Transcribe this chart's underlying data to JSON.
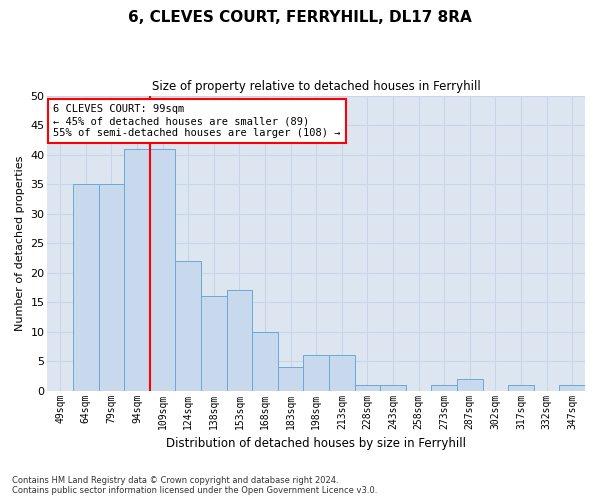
{
  "title": "6, CLEVES COURT, FERRYHILL, DL17 8RA",
  "subtitle": "Size of property relative to detached houses in Ferryhill",
  "xlabel": "Distribution of detached houses by size in Ferryhill",
  "ylabel": "Number of detached properties",
  "categories": [
    "49sqm",
    "64sqm",
    "79sqm",
    "94sqm",
    "109sqm",
    "124sqm",
    "138sqm",
    "153sqm",
    "168sqm",
    "183sqm",
    "198sqm",
    "213sqm",
    "228sqm",
    "243sqm",
    "258sqm",
    "273sqm",
    "287sqm",
    "302sqm",
    "317sqm",
    "332sqm",
    "347sqm"
  ],
  "values": [
    0,
    35,
    35,
    41,
    41,
    22,
    16,
    17,
    10,
    4,
    6,
    6,
    1,
    1,
    0,
    1,
    2,
    0,
    1,
    0,
    1
  ],
  "bar_color": "#c8d9ee",
  "bar_edge_color": "#6aaad4",
  "grid_color": "#c8d4e8",
  "background_color": "#dde6f0",
  "annotation_text": "6 CLEVES COURT: 99sqm\n← 45% of detached houses are smaller (89)\n55% of semi-detached houses are larger (108) →",
  "annotation_box_facecolor": "white",
  "annotation_box_edgecolor": "red",
  "property_line_color": "red",
  "ylim": [
    0,
    50
  ],
  "yticks": [
    0,
    5,
    10,
    15,
    20,
    25,
    30,
    35,
    40,
    45,
    50
  ],
  "footer_line1": "Contains HM Land Registry data © Crown copyright and database right 2024.",
  "footer_line2": "Contains public sector information licensed under the Open Government Licence v3.0."
}
